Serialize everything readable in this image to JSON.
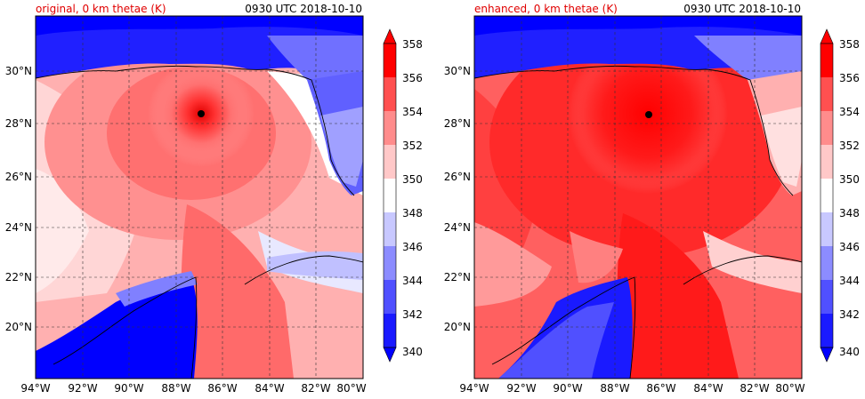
{
  "panels": [
    {
      "id": "original",
      "title": "original, 0 km thetae (K)",
      "time": "0930 UTC 2018-10-10",
      "storm_center": {
        "lon": -87.0,
        "lat": 28.4
      }
    },
    {
      "id": "enhanced",
      "title": "enhanced, 0 km thetae (K)",
      "time": "0930 UTC 2018-10-10",
      "storm_center": {
        "lon": -86.5,
        "lat": 28.4
      }
    }
  ],
  "axes": {
    "x_ticks": [
      "94°W",
      "92°W",
      "90°W",
      "88°W",
      "86°W",
      "84°W",
      "82°W",
      "80°W"
    ],
    "x_tick_values": [
      -94,
      -92,
      -90,
      -88,
      -86,
      -84,
      -82,
      -80
    ],
    "y_ticks": [
      "20°N",
      "22°N",
      "24°N",
      "26°N",
      "28°N",
      "30°N"
    ],
    "y_tick_values": [
      20,
      22,
      24,
      26,
      28,
      30
    ],
    "lon_range": [
      -94,
      -80
    ],
    "lat_range": [
      18.2,
      32.0
    ]
  },
  "colorbar": {
    "labels": [
      "358",
      "356",
      "354",
      "352",
      "350",
      "348",
      "346",
      "344",
      "342",
      "340"
    ],
    "levels": [
      340,
      342,
      344,
      346,
      348,
      350,
      352,
      354,
      356,
      358
    ],
    "colors": [
      "#0000ff",
      "#2222ff",
      "#5a5aff",
      "#9090ff",
      "#c8c8ff",
      "#ffffff",
      "#ffc8c8",
      "#ff9090",
      "#ff5a5a",
      "#ff2222",
      "#ff0000"
    ],
    "extend": "both"
  },
  "colors": {
    "land_cold": "#1a1aff",
    "sea_warm": "#ff4a4a",
    "coast": "#000000",
    "grid": "#333333"
  }
}
